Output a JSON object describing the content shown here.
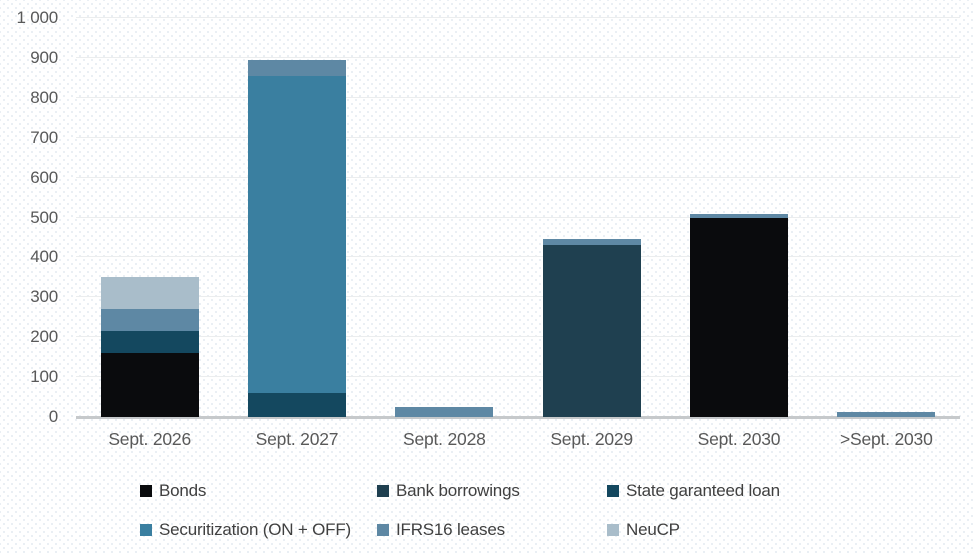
{
  "chart_data": {
    "type": "bar",
    "stacked": true,
    "title": "",
    "xlabel": "",
    "ylabel": "",
    "categories": [
      "Sept. 2026",
      "Sept. 2027",
      "Sept. 2028",
      "Sept. 2029",
      "Sept. 2030",
      ">Sept. 2030"
    ],
    "series": [
      {
        "name": "Bonds",
        "color": "#0a0b0d",
        "values": [
          160,
          0,
          0,
          0,
          500,
          0
        ]
      },
      {
        "name": "Bank borrowings",
        "color": "#1f4050",
        "values": [
          0,
          0,
          0,
          430,
          0,
          0
        ]
      },
      {
        "name": "State garanteed loan",
        "color": "#14485f",
        "values": [
          55,
          60,
          0,
          0,
          0,
          0
        ]
      },
      {
        "name": "Securitization (ON + OFF)",
        "color": "#3a7fa0",
        "values": [
          0,
          795,
          0,
          0,
          0,
          0
        ]
      },
      {
        "name": "IFRS16 leases",
        "color": "#5e88a4",
        "values": [
          55,
          40,
          25,
          15,
          8,
          13
        ]
      },
      {
        "name": "NeuCP",
        "color": "#a9bdca",
        "values": [
          80,
          0,
          0,
          0,
          0,
          0
        ]
      }
    ],
    "totals": [
      350,
      895,
      25,
      445,
      508,
      13
    ],
    "ylim": [
      0,
      1000
    ],
    "y_ticks": [
      0,
      100,
      200,
      300,
      400,
      500,
      600,
      700,
      800,
      900,
      1000
    ],
    "y_tick_labels": [
      "0",
      "100",
      "200",
      "300",
      "400",
      "500",
      "600",
      "700",
      "800",
      "900",
      "1 000"
    ],
    "grid": "horizontal",
    "legend_position": "bottom",
    "legend_columns": 3,
    "axis_label_color": "#595959",
    "legend_label_color": "#404040",
    "gridline_color": "#ebedee",
    "baseline_color": "#c6c9cb"
  }
}
